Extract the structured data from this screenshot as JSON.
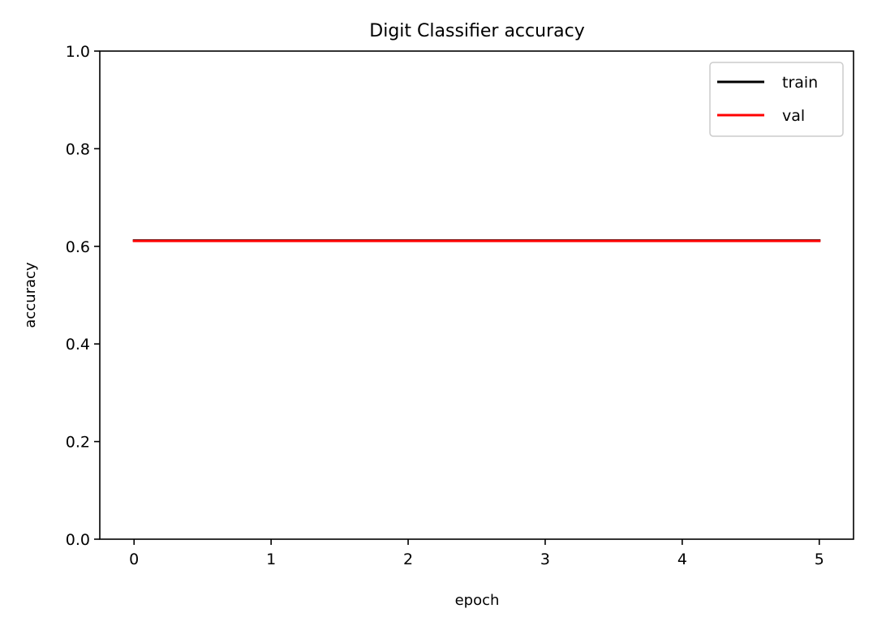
{
  "chart_data": {
    "type": "line",
    "title": "Digit Classifier accuracy",
    "xlabel": "epoch",
    "ylabel": "accuracy",
    "xlim": [
      -0.25,
      5.25
    ],
    "ylim": [
      0.0,
      1.0
    ],
    "x_ticks": [
      0,
      1,
      2,
      3,
      4,
      5
    ],
    "x_tick_labels": [
      "0",
      "1",
      "2",
      "3",
      "4",
      "5"
    ],
    "y_ticks": [
      0.0,
      0.2,
      0.4,
      0.6,
      0.8,
      1.0
    ],
    "y_tick_labels": [
      "0.0",
      "0.2",
      "0.4",
      "0.6",
      "0.8",
      "1.0"
    ],
    "grid": false,
    "legend_position": "top-right",
    "x": [
      0,
      1,
      2,
      3,
      4,
      5
    ],
    "series": [
      {
        "name": "train",
        "color": "#000000",
        "values": [
          0.612,
          0.612,
          0.612,
          0.612,
          0.612,
          0.612
        ]
      },
      {
        "name": "val",
        "color": "#ff0000",
        "values": [
          0.611,
          0.611,
          0.611,
          0.611,
          0.611,
          0.611
        ]
      }
    ]
  }
}
